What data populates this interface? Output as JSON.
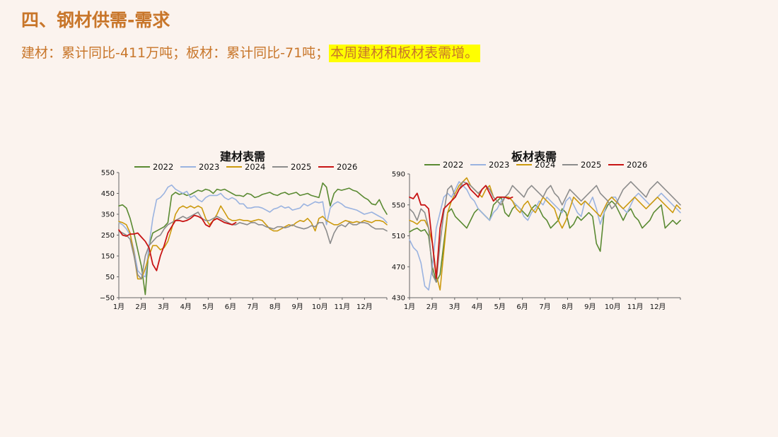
{
  "slide": {
    "title": "四、钢材供需-需求",
    "subtitle_prefix": "建材：累计同比-411万吨；板材：累计同比-71吨；",
    "subtitle_highlight": "本周建材和板材表需增。"
  },
  "colors": {
    "accent": "#c8762a",
    "highlight": "#ffff00",
    "2022": "#5a8a32",
    "2023": "#9ab3e0",
    "2024": "#cc9a0e",
    "2025": "#8c8c8c",
    "2026": "#c81414"
  },
  "chart_data": [
    {
      "type": "line",
      "title": "建材表需",
      "xlabel": "",
      "ylabel": "",
      "x_ticks": [
        "1月",
        "2月",
        "3月",
        "4月",
        "5月",
        "6月",
        "7月",
        "8月",
        "9月",
        "10月",
        "11月",
        "12月"
      ],
      "ylim": [
        -50,
        550
      ],
      "y_ticks": [
        -50,
        50,
        150,
        250,
        350,
        450,
        550
      ],
      "grid": false,
      "legend": "top",
      "series": [
        {
          "name": "2022",
          "values": [
            390,
            395,
            380,
            330,
            260,
            180,
            100,
            -35,
            200,
            260,
            270,
            280,
            290,
            310,
            440,
            455,
            445,
            450,
            440,
            445,
            455,
            465,
            460,
            470,
            465,
            450,
            470,
            465,
            470,
            460,
            450,
            440,
            440,
            435,
            450,
            445,
            430,
            435,
            445,
            450,
            455,
            445,
            440,
            450,
            455,
            445,
            450,
            455,
            440,
            445,
            450,
            440,
            435,
            430,
            500,
            480,
            390,
            450,
            470,
            465,
            470,
            475,
            465,
            460,
            445,
            430,
            420,
            400,
            395,
            420,
            380,
            350
          ]
        },
        {
          "name": "2023",
          "values": [
            310,
            300,
            280,
            250,
            180,
            80,
            60,
            50,
            200,
            330,
            420,
            430,
            450,
            480,
            490,
            470,
            460,
            450,
            460,
            430,
            440,
            420,
            410,
            430,
            440,
            440,
            440,
            450,
            430,
            420,
            430,
            420,
            400,
            400,
            380,
            380,
            385,
            385,
            380,
            370,
            360,
            375,
            380,
            390,
            380,
            385,
            370,
            375,
            380,
            400,
            390,
            400,
            410,
            405,
            410,
            300,
            380,
            400,
            410,
            400,
            385,
            380,
            375,
            370,
            360,
            350,
            355,
            360,
            350,
            340,
            330,
            310
          ]
        },
        {
          "name": "2024",
          "values": [
            315,
            310,
            300,
            260,
            160,
            40,
            40,
            90,
            150,
            200,
            200,
            180,
            190,
            220,
            280,
            350,
            380,
            390,
            380,
            390,
            380,
            390,
            380,
            330,
            300,
            320,
            350,
            390,
            360,
            330,
            320,
            320,
            325,
            320,
            320,
            315,
            320,
            325,
            320,
            300,
            280,
            270,
            270,
            280,
            290,
            300,
            295,
            310,
            320,
            315,
            330,
            310,
            270,
            330,
            340,
            320,
            310,
            300,
            300,
            310,
            320,
            315,
            310,
            315,
            310,
            320,
            315,
            310,
            320,
            320,
            315,
            300
          ]
        },
        {
          "name": "2025",
          "values": [
            270,
            260,
            250,
            230,
            150,
            60,
            40,
            150,
            200,
            220,
            240,
            250,
            280,
            300,
            310,
            320,
            330,
            340,
            330,
            340,
            350,
            360,
            330,
            320,
            320,
            330,
            340,
            330,
            320,
            310,
            300,
            300,
            310,
            305,
            300,
            310,
            310,
            300,
            300,
            290,
            285,
            280,
            290,
            290,
            285,
            290,
            300,
            290,
            285,
            280,
            285,
            295,
            290,
            310,
            310,
            270,
            210,
            260,
            290,
            300,
            290,
            310,
            300,
            300,
            310,
            310,
            305,
            290,
            280,
            280,
            280,
            270
          ]
        },
        {
          "name": "2026",
          "values": [
            275,
            250,
            245,
            255,
            255,
            260,
            240,
            220,
            190,
            110,
            80,
            150,
            200,
            260,
            290,
            320,
            320,
            315,
            320,
            330,
            345,
            340,
            330,
            300,
            290,
            320,
            330,
            320,
            310,
            305,
            300,
            310
          ]
        }
      ]
    },
    {
      "type": "line",
      "title": "板材表需",
      "xlabel": "",
      "ylabel": "",
      "x_ticks": [
        "1月",
        "2月",
        "3月",
        "4月",
        "5月",
        "6月",
        "7月",
        "8月",
        "9月",
        "10月",
        "11月",
        "12月"
      ],
      "ylim": [
        430,
        590
      ],
      "y_ticks": [
        430,
        470,
        510,
        550,
        590
      ],
      "grid": false,
      "legend": "top",
      "series": [
        {
          "name": "2022",
          "values": [
            515,
            518,
            520,
            516,
            518,
            510,
            470,
            450,
            460,
            500,
            540,
            545,
            535,
            530,
            525,
            520,
            530,
            540,
            545,
            540,
            535,
            530,
            550,
            555,
            560,
            540,
            535,
            545,
            550,
            545,
            540,
            535,
            545,
            550,
            545,
            535,
            530,
            520,
            525,
            530,
            545,
            540,
            520,
            525,
            535,
            530,
            535,
            540,
            535,
            500,
            490,
            540,
            550,
            555,
            550,
            540,
            530,
            540,
            545,
            535,
            530,
            520,
            525,
            530,
            540,
            545,
            550,
            520,
            525,
            530,
            525,
            530
          ]
        },
        {
          "name": "2023",
          "values": [
            505,
            495,
            490,
            475,
            445,
            440,
            470,
            520,
            540,
            560,
            565,
            560,
            570,
            580,
            575,
            570,
            560,
            555,
            545,
            540,
            535,
            530,
            540,
            545,
            555,
            560,
            560,
            555,
            550,
            545,
            535,
            530,
            540,
            545,
            555,
            550,
            560,
            555,
            550,
            545,
            540,
            555,
            560,
            550,
            540,
            535,
            555,
            550,
            560,
            545,
            525,
            540,
            555,
            560,
            560,
            550,
            545,
            540,
            550,
            560,
            565,
            560,
            555,
            550,
            555,
            560,
            565,
            560,
            555,
            550,
            545,
            540
          ]
        },
        {
          "name": "2024",
          "values": [
            530,
            528,
            525,
            530,
            530,
            520,
            500,
            460,
            440,
            490,
            540,
            555,
            565,
            575,
            580,
            585,
            575,
            570,
            565,
            560,
            570,
            575,
            560,
            555,
            550,
            560,
            560,
            555,
            545,
            540,
            550,
            555,
            545,
            540,
            550,
            560,
            555,
            550,
            545,
            530,
            520,
            530,
            545,
            560,
            555,
            550,
            555,
            550,
            545,
            540,
            535,
            545,
            555,
            560,
            555,
            550,
            545,
            550,
            555,
            560,
            555,
            550,
            545,
            550,
            555,
            560,
            555,
            550,
            545,
            540,
            550,
            545
          ]
        },
        {
          "name": "2025",
          "values": [
            545,
            540,
            530,
            545,
            540,
            520,
            460,
            450,
            500,
            540,
            570,
            575,
            560,
            570,
            580,
            578,
            575,
            570,
            565,
            570,
            575,
            570,
            560,
            555,
            550,
            560,
            565,
            575,
            570,
            565,
            560,
            570,
            575,
            570,
            565,
            560,
            570,
            575,
            565,
            560,
            550,
            560,
            570,
            565,
            560,
            555,
            560,
            565,
            570,
            575,
            565,
            560,
            555,
            545,
            550,
            560,
            570,
            575,
            580,
            575,
            570,
            565,
            560,
            570,
            575,
            580,
            575,
            570,
            565,
            560,
            555,
            550
          ]
        },
        {
          "name": "2026",
          "values": [
            560,
            558,
            565,
            550,
            550,
            545,
            500,
            455,
            520,
            545,
            550,
            555,
            560,
            570,
            575,
            578,
            570,
            565,
            560,
            570,
            575,
            565,
            555,
            560,
            560,
            560,
            558,
            560
          ]
        }
      ]
    }
  ]
}
